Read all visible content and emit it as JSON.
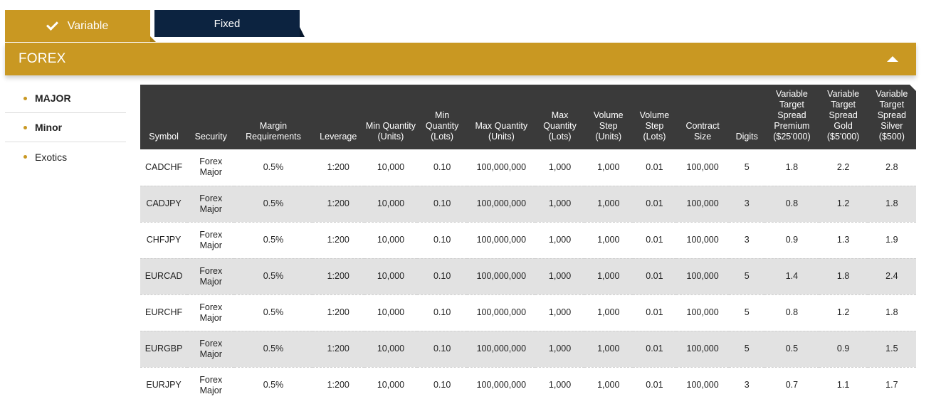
{
  "tabs": [
    {
      "label": "Variable",
      "active": true
    },
    {
      "label": "Fixed",
      "active": false
    }
  ],
  "section": {
    "title": "FOREX"
  },
  "sidebar": {
    "items": [
      {
        "label": "MAJOR"
      },
      {
        "label": "Minor"
      },
      {
        "label": "Exotics"
      }
    ]
  },
  "table": {
    "headers": [
      "Symbol",
      "Security",
      "Margin Requirements",
      "Leverage",
      "Min Quantity (Units)",
      "Min Quantity (Lots)",
      "Max Quantity (Units)",
      "Max Quantity (Lots)",
      "Volume Step (Units)",
      "Volume Step (Lots)",
      "Contract Size",
      "Digits",
      "Variable Target Spread Premium ($25'000)",
      "Variable Target Spread Gold ($5'000)",
      "Variable Target Spread Silver ($500)"
    ],
    "rows": [
      [
        "CADCHF",
        "Forex Major",
        "0.5%",
        "1:200",
        "10,000",
        "0.10",
        "100,000,000",
        "1,000",
        "1,000",
        "0.01",
        "100,000",
        "5",
        "1.8",
        "2.2",
        "2.8"
      ],
      [
        "CADJPY",
        "Forex Major",
        "0.5%",
        "1:200",
        "10,000",
        "0.10",
        "100,000,000",
        "1,000",
        "1,000",
        "0.01",
        "100,000",
        "3",
        "0.8",
        "1.2",
        "1.8"
      ],
      [
        "CHFJPY",
        "Forex Major",
        "0.5%",
        "1:200",
        "10,000",
        "0.10",
        "100,000,000",
        "1,000",
        "1,000",
        "0.01",
        "100,000",
        "3",
        "0.9",
        "1.3",
        "1.9"
      ],
      [
        "EURCAD",
        "Forex Major",
        "0.5%",
        "1:200",
        "10,000",
        "0.10",
        "100,000,000",
        "1,000",
        "1,000",
        "0.01",
        "100,000",
        "5",
        "1.4",
        "1.8",
        "2.4"
      ],
      [
        "EURCHF",
        "Forex Major",
        "0.5%",
        "1:200",
        "10,000",
        "0.10",
        "100,000,000",
        "1,000",
        "1,000",
        "0.01",
        "100,000",
        "5",
        "0.8",
        "1.2",
        "1.8"
      ],
      [
        "EURGBP",
        "Forex Major",
        "0.5%",
        "1:200",
        "10,000",
        "0.10",
        "100,000,000",
        "1,000",
        "1,000",
        "0.01",
        "100,000",
        "5",
        "0.5",
        "0.9",
        "1.5"
      ],
      [
        "EURJPY",
        "Forex Major",
        "0.5%",
        "1:200",
        "10,000",
        "0.10",
        "100,000,000",
        "1,000",
        "1,000",
        "0.01",
        "100,000",
        "3",
        "0.7",
        "1.1",
        "1.7"
      ]
    ]
  }
}
